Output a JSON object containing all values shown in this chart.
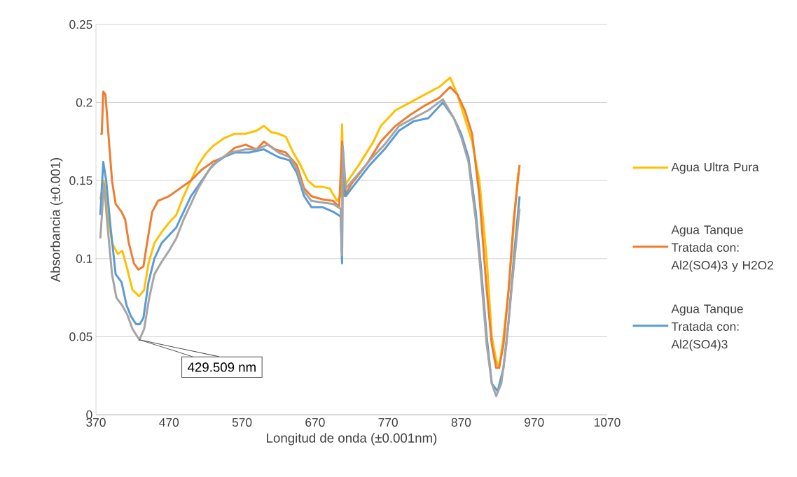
{
  "chart_data": {
    "type": "line",
    "xlabel": "Longitud de onda (±0.001nm)",
    "ylabel": "Absorbancia (±0.001)",
    "xlim": [
      370,
      1070
    ],
    "xticks": [
      370,
      470,
      570,
      670,
      770,
      870,
      970,
      1070
    ],
    "ylim": [
      0,
      0.25
    ],
    "yticks": [
      0,
      0.05,
      0.1,
      0.15,
      0.2,
      0.25
    ],
    "grid": "y",
    "legend": "right",
    "marker": "none",
    "line_style": "solid",
    "annotations": [
      {
        "text": "429.509 nm",
        "x": 429.509,
        "y": 0.048
      }
    ],
    "series": [
      {
        "name": "Agua Ultra Pura",
        "color": "#ffc000",
        "x": [
          376,
          381,
          386,
          392,
          400,
          406,
          412,
          420,
          429,
          436,
          442,
          450,
          460,
          470,
          480,
          490,
          500,
          510,
          520,
          530,
          545,
          560,
          575,
          590,
          600,
          610,
          620,
          630,
          640,
          650,
          660,
          670,
          680,
          690,
          700,
          705,
          707,
          709,
          715,
          730,
          750,
          760,
          770,
          780,
          800,
          820,
          840,
          855,
          865,
          875,
          885,
          895,
          905,
          912,
          918,
          922,
          928,
          935,
          942,
          948
        ],
        "values": [
          0.138,
          0.15,
          0.13,
          0.11,
          0.103,
          0.105,
          0.095,
          0.08,
          0.076,
          0.08,
          0.097,
          0.11,
          0.117,
          0.123,
          0.128,
          0.14,
          0.15,
          0.16,
          0.167,
          0.172,
          0.177,
          0.18,
          0.18,
          0.182,
          0.185,
          0.181,
          0.18,
          0.178,
          0.168,
          0.16,
          0.15,
          0.146,
          0.146,
          0.145,
          0.137,
          0.14,
          0.186,
          0.145,
          0.15,
          0.16,
          0.175,
          0.185,
          0.19,
          0.195,
          0.2,
          0.205,
          0.21,
          0.216,
          0.205,
          0.19,
          0.175,
          0.15,
          0.1,
          0.05,
          0.035,
          0.03,
          0.05,
          0.08,
          0.12,
          0.155
        ]
      },
      {
        "name": "Agua Tanque Tratada con: Al2(SO4)3 y H2O2",
        "color": "#ed7d31",
        "x": [
          376,
          378,
          380,
          383,
          387,
          392,
          397,
          405,
          410,
          415,
          422,
          428,
          435,
          440,
          447,
          455,
          470,
          485,
          500,
          515,
          530,
          545,
          560,
          575,
          590,
          600,
          615,
          630,
          645,
          655,
          665,
          680,
          695,
          703,
          707,
          710,
          720,
          740,
          760,
          780,
          800,
          820,
          840,
          855,
          865,
          875,
          885,
          895,
          905,
          912,
          918,
          922,
          928,
          935,
          942,
          950
        ],
        "values": [
          0.18,
          0.18,
          0.207,
          0.205,
          0.18,
          0.15,
          0.135,
          0.13,
          0.125,
          0.11,
          0.097,
          0.093,
          0.095,
          0.11,
          0.13,
          0.137,
          0.14,
          0.145,
          0.15,
          0.157,
          0.162,
          0.165,
          0.171,
          0.173,
          0.17,
          0.175,
          0.17,
          0.168,
          0.16,
          0.145,
          0.14,
          0.138,
          0.137,
          0.133,
          0.175,
          0.14,
          0.148,
          0.16,
          0.175,
          0.185,
          0.192,
          0.198,
          0.203,
          0.21,
          0.205,
          0.195,
          0.18,
          0.14,
          0.08,
          0.045,
          0.03,
          0.03,
          0.045,
          0.08,
          0.125,
          0.16
        ]
      },
      {
        "name": "Agua Tanque Tratada con: Al2(SO4)3",
        "color": "#5b9bd5",
        "x": [
          376,
          380,
          384,
          390,
          397,
          405,
          412,
          418,
          425,
          430,
          435,
          442,
          450,
          460,
          470,
          480,
          490,
          500,
          515,
          530,
          545,
          560,
          580,
          600,
          620,
          635,
          645,
          655,
          665,
          680,
          695,
          705,
          707,
          708,
          712,
          725,
          745,
          765,
          785,
          805,
          825,
          845,
          860,
          870,
          880,
          890,
          898,
          905,
          912,
          920,
          928,
          935,
          942,
          950
        ],
        "values": [
          0.128,
          0.162,
          0.15,
          0.12,
          0.09,
          0.085,
          0.07,
          0.063,
          0.058,
          0.058,
          0.062,
          0.085,
          0.1,
          0.11,
          0.115,
          0.12,
          0.13,
          0.14,
          0.15,
          0.16,
          0.165,
          0.168,
          0.168,
          0.17,
          0.165,
          0.163,
          0.155,
          0.14,
          0.133,
          0.133,
          0.13,
          0.127,
          0.097,
          0.17,
          0.14,
          0.148,
          0.16,
          0.17,
          0.182,
          0.188,
          0.19,
          0.2,
          0.19,
          0.18,
          0.165,
          0.13,
          0.09,
          0.05,
          0.02,
          0.015,
          0.03,
          0.06,
          0.1,
          0.14
        ]
      },
      {
        "color": "#a5a5a5",
        "x": [
          376,
          381,
          386,
          392,
          398,
          406,
          413,
          420,
          429.509,
          436,
          443,
          450,
          460,
          470,
          480,
          490,
          500,
          510,
          525,
          540,
          555,
          575,
          590,
          605,
          620,
          635,
          645,
          655,
          665,
          680,
          695,
          705,
          707,
          708,
          712,
          725,
          745,
          765,
          785,
          805,
          825,
          845,
          860,
          870,
          880,
          890,
          898,
          905,
          912,
          918,
          925,
          932,
          940,
          950
        ],
        "values": [
          0.113,
          0.148,
          0.12,
          0.09,
          0.075,
          0.07,
          0.064,
          0.055,
          0.048,
          0.055,
          0.075,
          0.09,
          0.098,
          0.105,
          0.113,
          0.125,
          0.135,
          0.145,
          0.157,
          0.164,
          0.168,
          0.17,
          0.17,
          0.173,
          0.168,
          0.165,
          0.157,
          0.143,
          0.137,
          0.136,
          0.135,
          0.132,
          0.102,
          0.172,
          0.145,
          0.152,
          0.163,
          0.173,
          0.185,
          0.19,
          0.195,
          0.202,
          0.19,
          0.178,
          0.162,
          0.125,
          0.085,
          0.045,
          0.02,
          0.012,
          0.02,
          0.045,
          0.085,
          0.132
        ]
      }
    ]
  }
}
